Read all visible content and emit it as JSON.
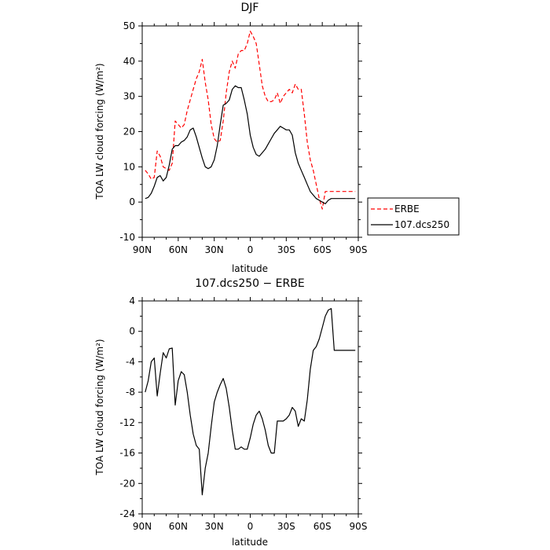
{
  "chart_data": [
    {
      "type": "line",
      "title": "DJF",
      "xlabel": "latitude",
      "ylabel": "TOA LW cloud forcing (W/m²)",
      "xlim": [
        90,
        -90
      ],
      "ylim": [
        -10,
        50
      ],
      "x_tick_labels": [
        "90N",
        "60N",
        "30N",
        "0",
        "30S",
        "60S",
        "90S"
      ],
      "y_tick_labels": [
        "-10",
        "0",
        "10",
        "20",
        "30",
        "40",
        "50"
      ],
      "legend_position": "right",
      "series": [
        {
          "name": "ERBE",
          "color": "#ff0000",
          "style": "dashed",
          "x": [
            87.5,
            85,
            82.5,
            80,
            77.5,
            75,
            72.5,
            70,
            67.5,
            65,
            62.5,
            60,
            57.5,
            55,
            52.5,
            50,
            47.5,
            45,
            42.5,
            40,
            37.5,
            35,
            32.5,
            30,
            27.5,
            25,
            22.5,
            20,
            17.5,
            15,
            12.5,
            10,
            7.5,
            5,
            2.5,
            0,
            -2.5,
            -5,
            -7.5,
            -10,
            -12.5,
            -15,
            -17.5,
            -20,
            -22.5,
            -25,
            -27.5,
            -30,
            -32.5,
            -35,
            -37.5,
            -40,
            -42.5,
            -45,
            -47.5,
            -50,
            -52.5,
            -55,
            -57.5,
            -60,
            -62.5,
            -65,
            -67.5,
            -70,
            -72.5,
            -75,
            -77.5,
            -80,
            -82.5,
            -85,
            -87.5
          ],
          "values": [
            9,
            8,
            6.5,
            7,
            14.5,
            13,
            10,
            9.5,
            9,
            11,
            23,
            22,
            21,
            22,
            26,
            29,
            32,
            35,
            37,
            40.5,
            34,
            29,
            22,
            18,
            17,
            17.5,
            23,
            31,
            37,
            40,
            38,
            42,
            43,
            43,
            45,
            48.5,
            47,
            45,
            39,
            33,
            30,
            28.5,
            28.5,
            29,
            31,
            28,
            30,
            31,
            32,
            31,
            33.5,
            32,
            32,
            25,
            17,
            12,
            9,
            5,
            1,
            -2,
            3,
            3,
            3,
            3,
            3,
            3,
            3,
            3,
            3,
            3,
            3
          ],
          "values_note": ""
        },
        {
          "name": "107.dcs250",
          "color": "#000000",
          "style": "solid",
          "x": [
            87.5,
            85,
            82.5,
            80,
            77.5,
            75,
            72.5,
            70,
            67.5,
            65,
            62.5,
            60,
            57.5,
            55,
            52.5,
            50,
            47.5,
            45,
            42.5,
            40,
            37.5,
            35,
            32.5,
            30,
            27.5,
            25,
            22.5,
            20,
            17.5,
            15,
            12.5,
            10,
            7.5,
            5,
            2.5,
            0,
            -2.5,
            -5,
            -7.5,
            -10,
            -12.5,
            -15,
            -17.5,
            -20,
            -22.5,
            -25,
            -27.5,
            -30,
            -32.5,
            -35,
            -37.5,
            -40,
            -42.5,
            -45,
            -47.5,
            -50,
            -52.5,
            -55,
            -57.5,
            -60,
            -62.5,
            -65,
            -67.5,
            -70,
            -72.5,
            -75,
            -77.5,
            -80,
            -82.5,
            -85,
            -87.5
          ],
          "values": [
            1,
            1.3,
            2.5,
            4.5,
            7,
            7.5,
            6,
            7,
            10.5,
            15,
            16,
            16,
            17,
            17.5,
            18.5,
            20.5,
            21,
            18.5,
            15.5,
            12.5,
            10,
            9.5,
            10,
            12,
            16,
            22,
            27.5,
            28,
            29,
            32,
            33,
            32.5,
            32.5,
            29,
            25,
            19,
            15.5,
            13.5,
            13,
            14,
            15,
            16.5,
            18,
            19.5,
            20.5,
            21.5,
            21,
            20.5,
            20.5,
            19,
            14,
            11,
            9,
            7,
            5,
            3,
            2,
            1,
            0.5,
            0,
            -0.5,
            0.5,
            1,
            1,
            1,
            1,
            1,
            1,
            1,
            1,
            1
          ],
          "values_note": ""
        }
      ]
    },
    {
      "type": "line",
      "title": "107.dcs250 − ERBE",
      "xlabel": "latitude",
      "ylabel": "TOA LW cloud forcing (W/m²)",
      "xlim": [
        90,
        -90
      ],
      "ylim": [
        -24,
        4
      ],
      "x_tick_labels": [
        "90N",
        "60N",
        "30N",
        "0",
        "30S",
        "60S",
        "90S"
      ],
      "y_tick_labels": [
        "-24",
        "-20",
        "-16",
        "-12",
        "-8",
        "-4",
        "0",
        "4"
      ],
      "series": [
        {
          "name": "",
          "color": "#000000",
          "style": "solid",
          "x": [
            87.5,
            85,
            82.5,
            80,
            77.5,
            75,
            72.5,
            70,
            67.5,
            65,
            62.5,
            60,
            57.5,
            55,
            52.5,
            50,
            47.5,
            45,
            42.5,
            40,
            37.5,
            35,
            32.5,
            30,
            27.5,
            25,
            22.5,
            20,
            17.5,
            15,
            12.5,
            10,
            7.5,
            5,
            2.5,
            0,
            -2.5,
            -5,
            -7.5,
            -10,
            -12.5,
            -15,
            -17.5,
            -20,
            -22.5,
            -25,
            -27.5,
            -30,
            -32.5,
            -35,
            -37.5,
            -40,
            -42.5,
            -45,
            -47.5,
            -50,
            -52.5,
            -55,
            -57.5,
            -60,
            -62.5,
            -65,
            -67.5,
            -70,
            -72.5,
            -75,
            -77.5,
            -80,
            -82.5,
            -85,
            -87.5
          ],
          "values": [
            -8,
            -6.5,
            -4,
            -3.5,
            -8.5,
            -5.5,
            -2.8,
            -3.5,
            -2.3,
            -2.2,
            -9.7,
            -6.5,
            -5.3,
            -5.7,
            -8,
            -11,
            -13.5,
            -15,
            -15.5,
            -21.5,
            -18,
            -16,
            -12.5,
            -9.3,
            -8,
            -7,
            -6.2,
            -7.5,
            -10,
            -13,
            -15.5,
            -15.5,
            -15.2,
            -15.5,
            -15.5,
            -14,
            -12.2,
            -11,
            -10.5,
            -11.5,
            -13,
            -15,
            -16,
            -16,
            -11.8,
            -11.8,
            -11.8,
            -11.5,
            -11,
            -10,
            -10.5,
            -12.5,
            -11.5,
            -11.8,
            -9,
            -5,
            -2.5,
            -2,
            -1,
            0.5,
            2,
            2.8,
            3,
            -2.5,
            -2.5,
            -2.5,
            -2.5,
            -2.5,
            -2.5,
            -2.5,
            -2.5
          ],
          "values_note": ""
        }
      ]
    }
  ]
}
